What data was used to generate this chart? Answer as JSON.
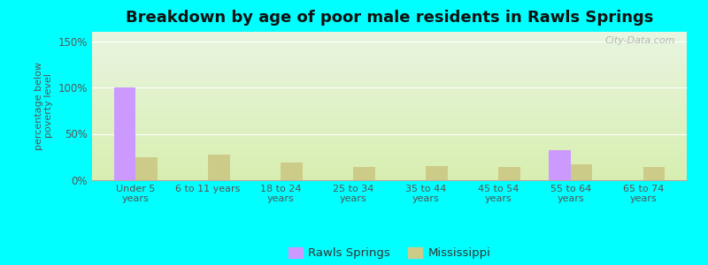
{
  "title": "Breakdown by age of poor male residents in Rawls Springs",
  "categories": [
    "Under 5\nyears",
    "6 to 11 years",
    "18 to 24\nyears",
    "25 to 34\nyears",
    "35 to 44\nyears",
    "45 to 54\nyears",
    "55 to 64\nyears",
    "65 to 74\nyears"
  ],
  "rawls_springs": [
    100,
    0,
    0,
    0,
    0,
    0,
    32,
    0
  ],
  "mississippi": [
    25,
    28,
    19,
    14,
    15,
    14,
    17,
    14
  ],
  "rawls_color": "#cc99ff",
  "mississippi_color": "#cccc88",
  "outer_background": "#00ffff",
  "ylim": [
    0,
    160
  ],
  "yticks": [
    0,
    50,
    100,
    150
  ],
  "ytick_labels": [
    "0%",
    "50%",
    "100%",
    "150%"
  ],
  "ylabel": "percentage below\npoverty level",
  "bar_width": 0.3,
  "title_fontsize": 13,
  "watermark": "City-Data.com"
}
